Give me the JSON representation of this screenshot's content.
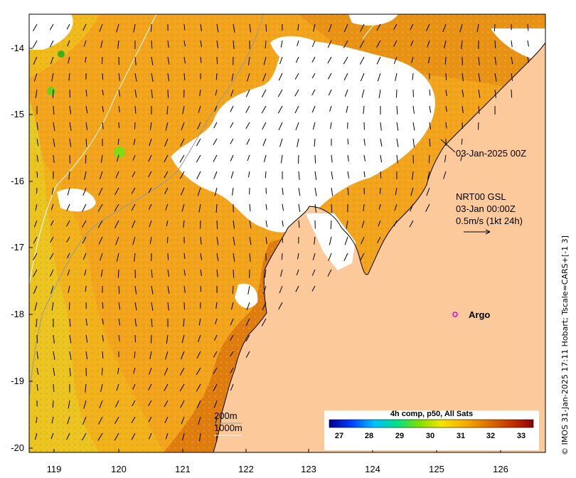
{
  "map": {
    "lon_ticks": [
      "119",
      "120",
      "121",
      "122",
      "123",
      "124",
      "125",
      "126"
    ],
    "lat_ticks": [
      "-14",
      "-15",
      "-16",
      "-17",
      "-18",
      "-19",
      "-20"
    ],
    "colors": {
      "land": "#fcc99b",
      "sst_low": "#e2e51d",
      "sst_mid": "#f4a21a",
      "sst_high": "#d6720a",
      "sst_hot": "#b4380c",
      "cloud": "#ffffff",
      "argo_marker": "#e000e0"
    }
  },
  "annotations": {
    "date_label": "03-Jan-2025 00Z",
    "current_product": "NRT00 GSL",
    "current_date": "03-Jan 00:00Z",
    "current_scale": "0.5m/s (1kt 24h)",
    "argo_label": "Argo",
    "depth_200": "200m",
    "depth_1000": "1000m"
  },
  "colorbar": {
    "title": "4h comp, p50, All Sats",
    "ticks": [
      "27",
      "28",
      "29",
      "30",
      "31",
      "32",
      "33"
    ],
    "stops": [
      "#00008f",
      "#0040ff",
      "#00c0ff",
      "#00e08a",
      "#7ee000",
      "#f4e400",
      "#f6b000",
      "#e07000",
      "#c03000",
      "#900000"
    ]
  },
  "credit": "© IMOS 31-Jan-2025 17:11 Hobart; Tscale=CARS+[-1 3]"
}
